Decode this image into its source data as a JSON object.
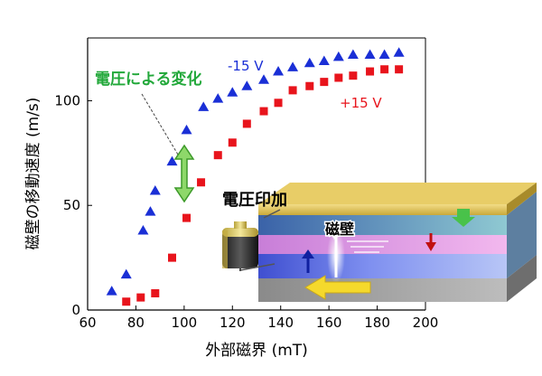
{
  "chart_data": {
    "type": "scatter",
    "xlabel": "外部磁界 (mT)",
    "ylabel": "磁壁の移動速度 (m/s)",
    "xlim": [
      60,
      200
    ],
    "ylim": [
      0,
      130
    ],
    "x_ticks": [
      60,
      80,
      100,
      120,
      140,
      160,
      180,
      200
    ],
    "y_ticks": [
      0,
      50,
      100
    ],
    "series": [
      {
        "name": "-15 V",
        "color": "#1a2fd6",
        "marker": "triangle",
        "x": [
          70,
          76,
          83,
          86,
          88,
          95,
          101,
          108,
          114,
          120,
          126,
          133,
          139,
          145,
          152,
          158,
          164,
          170,
          177,
          183,
          189
        ],
        "y": [
          9,
          17,
          38,
          47,
          57,
          71,
          86,
          97,
          101,
          104,
          107,
          110,
          114,
          116,
          118,
          119,
          121,
          122,
          122,
          122,
          123
        ]
      },
      {
        "name": "+15 V",
        "color": "#e8141c",
        "marker": "square",
        "x": [
          76,
          82,
          88,
          95,
          101,
          107,
          114,
          120,
          126,
          133,
          139,
          145,
          152,
          158,
          164,
          170,
          177,
          183,
          189
        ],
        "y": [
          4,
          6,
          8,
          25,
          44,
          61,
          74,
          80,
          89,
          95,
          99,
          105,
          107,
          109,
          111,
          112,
          114,
          115,
          115
        ]
      }
    ],
    "annotations": {
      "voltage_change": "電圧による変化",
      "voltage_change_color": "#22a83a",
      "voltage_apply": "電圧印加",
      "domain_wall": "磁壁"
    }
  }
}
